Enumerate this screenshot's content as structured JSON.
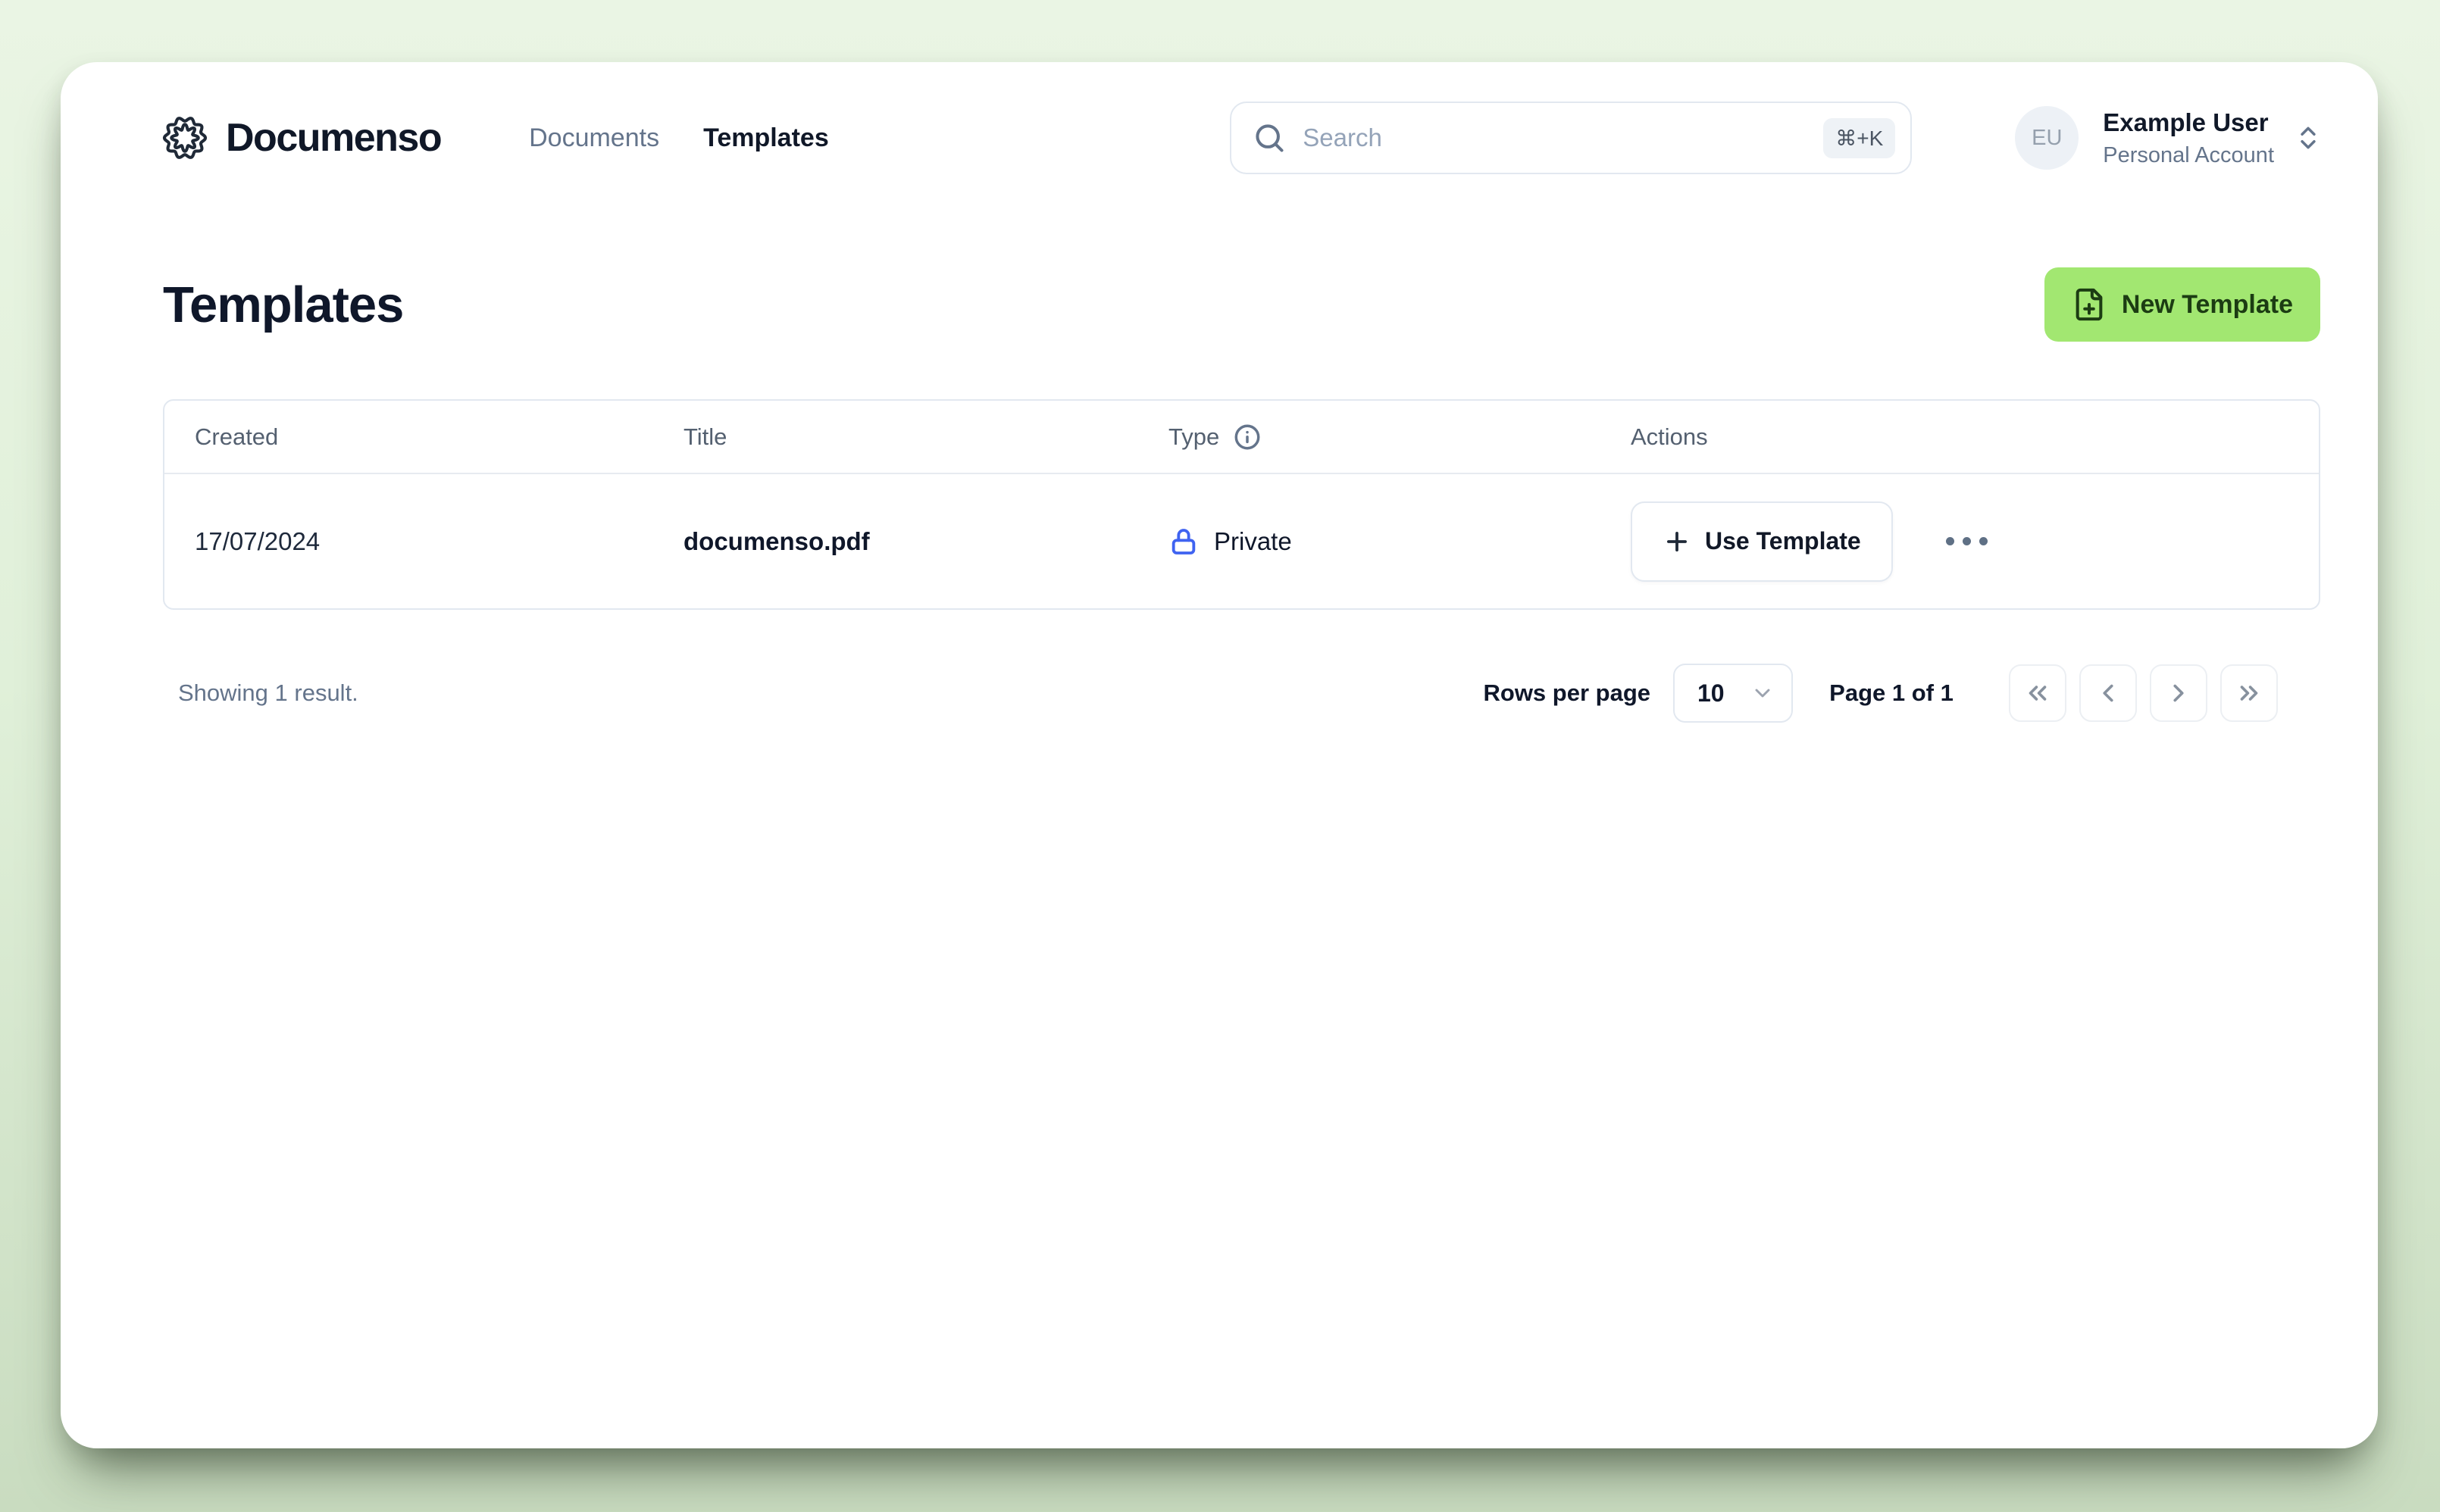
{
  "brand": {
    "name": "Documenso"
  },
  "nav": {
    "items": [
      {
        "label": "Documents",
        "active": false
      },
      {
        "label": "Templates",
        "active": true
      }
    ]
  },
  "search": {
    "placeholder": "Search",
    "shortcut": "⌘+K"
  },
  "user": {
    "initials": "EU",
    "name": "Example User",
    "account_type": "Personal Account"
  },
  "page": {
    "title": "Templates",
    "new_template_label": "New Template"
  },
  "table": {
    "headers": {
      "created": "Created",
      "title": "Title",
      "type": "Type",
      "actions": "Actions"
    },
    "rows": [
      {
        "created": "17/07/2024",
        "title": "documenso.pdf",
        "type": "Private",
        "action_label": "Use Template"
      }
    ]
  },
  "footer": {
    "results_text": "Showing 1 result.",
    "rows_per_page_label": "Rows per page",
    "rows_per_page_value": "10",
    "page_text": "Page 1 of 1"
  },
  "icons": {
    "logo": "documenso-seal",
    "search": "magnifier",
    "user_caret": "chevrons-up-down",
    "new_template": "file-plus",
    "type_info": "info-circle",
    "type_private": "lock",
    "use_template": "plus",
    "row_menu": "ellipsis",
    "select_caret": "chevron-down",
    "pager": [
      "chevrons-left",
      "chevron-left",
      "chevron-right",
      "chevrons-right"
    ]
  },
  "colors": {
    "accent_green": "#a2e771",
    "accent_green_text": "#1c3c13",
    "lock_blue": "#3f63f1",
    "background_green": "#e0f0d9",
    "text_dark": "#0f172a",
    "text_muted": "#64748b",
    "border": "#e2e8f0"
  }
}
